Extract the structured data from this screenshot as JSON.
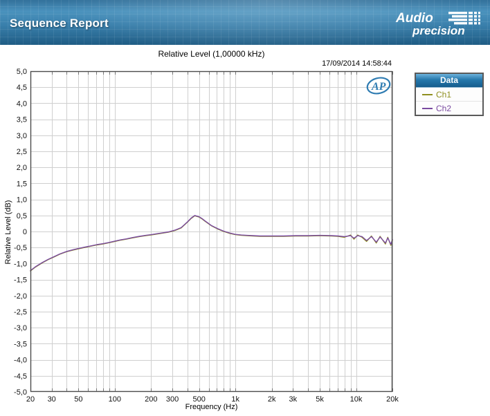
{
  "header": {
    "title": "Sequence Report",
    "logo_line1": "Audio",
    "logo_line2": "precision"
  },
  "watermark": "AP",
  "legend": {
    "title": "Data"
  },
  "chart_data": {
    "type": "line",
    "title": "Relative Level (1,00000 kHz)",
    "timestamp": "17/09/2014 14:58:44",
    "xlabel": "Frequency (Hz)",
    "ylabel": "Relative Level (dB)",
    "x_scale": "log",
    "xlim": [
      20,
      20000
    ],
    "ylim": [
      -5,
      5
    ],
    "grid": true,
    "legend_position": "outside-top-right",
    "y_tick_values": [
      5,
      4.5,
      4,
      3.5,
      3,
      2.5,
      2,
      1.5,
      1,
      0.5,
      0,
      -0.5,
      -1,
      -1.5,
      -2,
      -2.5,
      -3,
      -3.5,
      -4,
      -4.5,
      -5
    ],
    "y_tick_labels": [
      "5,0",
      "4,5",
      "4,0",
      "3,5",
      "3,0",
      "2,5",
      "2,0",
      "1,5",
      "1,0",
      "0,5",
      "0",
      "-0,5",
      "-1,0",
      "-1,5",
      "-2,0",
      "-2,5",
      "-3,0",
      "-3,5",
      "-4,0",
      "-4,5",
      "-5,0"
    ],
    "x_gridlines": [
      20,
      30,
      40,
      50,
      60,
      70,
      80,
      90,
      100,
      200,
      300,
      400,
      500,
      600,
      700,
      800,
      900,
      1000,
      2000,
      3000,
      4000,
      5000,
      6000,
      7000,
      8000,
      9000,
      10000,
      20000
    ],
    "x_major_ticks": [
      20,
      30,
      50,
      100,
      200,
      300,
      500,
      1000,
      2000,
      3000,
      5000,
      10000,
      20000
    ],
    "x_tick_labels": [
      "20",
      "30",
      "50",
      "100",
      "200",
      "300",
      "500",
      "1k",
      "2k",
      "3k",
      "5k",
      "10k",
      "20k"
    ],
    "grid_color": "#cfcfcf",
    "border_color": "#4a4a4a",
    "x": [
      20,
      22,
      25,
      28,
      31.5,
      35,
      40,
      45,
      50,
      56,
      63,
      71,
      80,
      90,
      100,
      112,
      125,
      140,
      160,
      180,
      200,
      224,
      250,
      280,
      315,
      355,
      400,
      430,
      460,
      500,
      530,
      560,
      630,
      710,
      800,
      900,
      1000,
      1120,
      1250,
      1400,
      1600,
      2000,
      2500,
      3150,
      4000,
      5000,
      6300,
      7100,
      8000,
      9000,
      9600,
      10300,
      11200,
      12200,
      13400,
      14700,
      15800,
      17500,
      18300,
      19400,
      20000
    ],
    "series": [
      {
        "name": "Ch1",
        "color": "#8f8f1f",
        "y": [
          -1.23,
          -1.11,
          -0.98,
          -0.88,
          -0.79,
          -0.71,
          -0.63,
          -0.58,
          -0.54,
          -0.5,
          -0.46,
          -0.42,
          -0.39,
          -0.35,
          -0.31,
          -0.27,
          -0.24,
          -0.2,
          -0.16,
          -0.13,
          -0.11,
          -0.08,
          -0.05,
          -0.02,
          0.03,
          0.11,
          0.29,
          0.41,
          0.49,
          0.45,
          0.39,
          0.32,
          0.18,
          0.08,
          0.0,
          -0.06,
          -0.1,
          -0.12,
          -0.13,
          -0.14,
          -0.15,
          -0.15,
          -0.15,
          -0.14,
          -0.14,
          -0.13,
          -0.14,
          -0.15,
          -0.18,
          -0.11,
          -0.24,
          -0.11,
          -0.18,
          -0.31,
          -0.14,
          -0.36,
          -0.15,
          -0.39,
          -0.18,
          -0.43,
          -0.27
        ]
      },
      {
        "name": "Ch2",
        "color": "#7a4aa0",
        "y": [
          -1.22,
          -1.1,
          -0.97,
          -0.87,
          -0.78,
          -0.7,
          -0.62,
          -0.57,
          -0.53,
          -0.49,
          -0.45,
          -0.41,
          -0.38,
          -0.34,
          -0.3,
          -0.26,
          -0.23,
          -0.19,
          -0.15,
          -0.12,
          -0.1,
          -0.07,
          -0.04,
          -0.01,
          0.04,
          0.12,
          0.3,
          0.42,
          0.5,
          0.46,
          0.4,
          0.33,
          0.19,
          0.09,
          0.01,
          -0.05,
          -0.09,
          -0.11,
          -0.12,
          -0.13,
          -0.14,
          -0.14,
          -0.14,
          -0.13,
          -0.13,
          -0.12,
          -0.13,
          -0.14,
          -0.16,
          -0.13,
          -0.21,
          -0.13,
          -0.16,
          -0.28,
          -0.16,
          -0.33,
          -0.17,
          -0.36,
          -0.2,
          -0.4,
          -0.25
        ]
      }
    ]
  }
}
